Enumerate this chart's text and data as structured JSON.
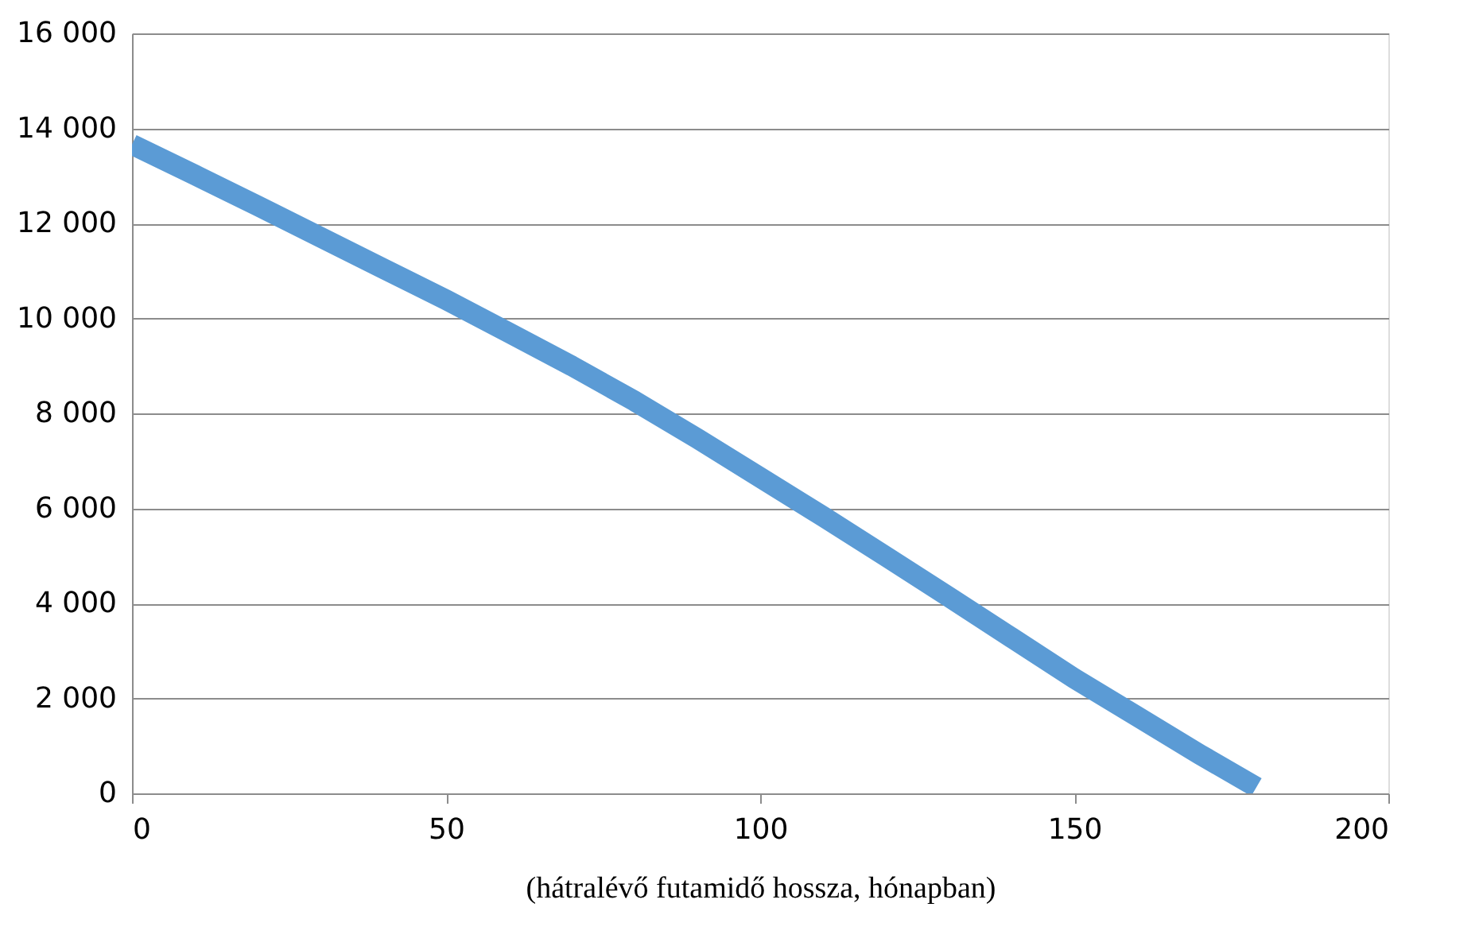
{
  "chart_data": {
    "type": "line",
    "xlabel": "(hátralévő futamidő hossza, hónapban)",
    "x": [
      0,
      10,
      20,
      30,
      40,
      50,
      60,
      70,
      80,
      90,
      100,
      110,
      120,
      130,
      140,
      150,
      160,
      170,
      179
    ],
    "series": [
      {
        "color": "#5b9bd5",
        "values": [
          13660,
          13020,
          12370,
          11710,
          11050,
          10390,
          9700,
          9000,
          8260,
          7470,
          6650,
          5830,
          4990,
          4140,
          3280,
          2420,
          1620,
          820,
          130
        ]
      }
    ],
    "xlim": [
      0,
      200
    ],
    "xticks": [
      0,
      50,
      100,
      150,
      200
    ],
    "ylim": [
      0,
      16000
    ],
    "yticks": [
      {
        "value": 0,
        "label": "0"
      },
      {
        "value": 2000,
        "label": "2 000"
      },
      {
        "value": 4000,
        "label": "4 000"
      },
      {
        "value": 6000,
        "label": "6 000"
      },
      {
        "value": 8000,
        "label": "8 000"
      },
      {
        "value": 10000,
        "label": "10 000"
      },
      {
        "value": 12000,
        "label": "12 000"
      },
      {
        "value": 14000,
        "label": "14 000"
      },
      {
        "value": 16000,
        "label": "16 000"
      }
    ],
    "grid": "y",
    "line_style": "solid"
  }
}
